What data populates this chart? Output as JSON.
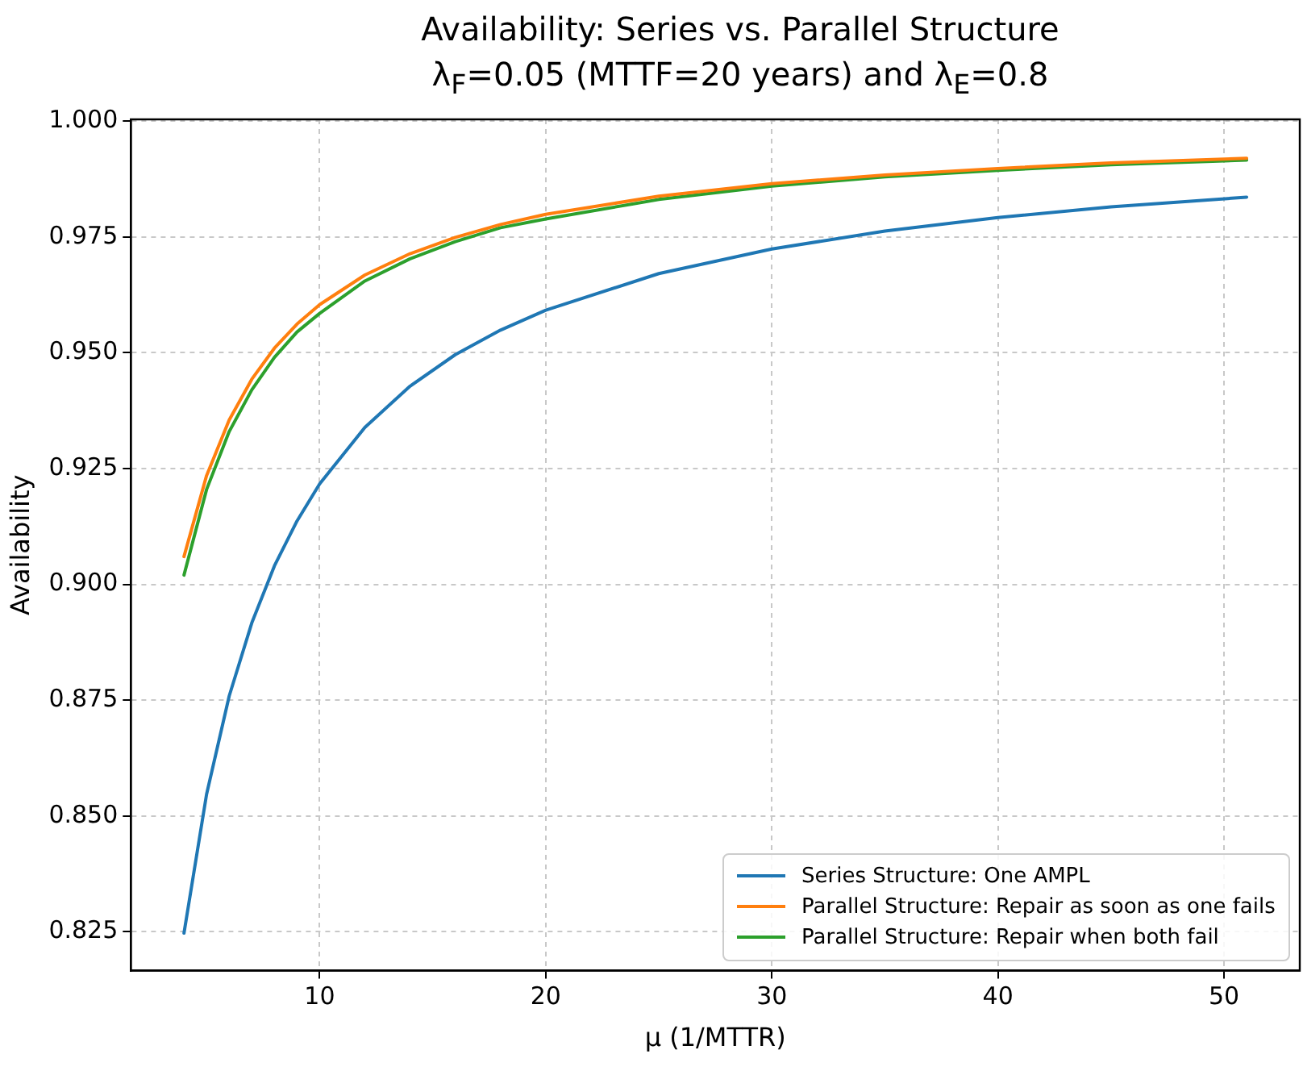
{
  "chart_data": {
    "type": "line",
    "title": "Availability: Series vs. Parallel Structure\nλ$_{F}$=0.05 (MTTF=20 years) and λ$_{E}$=0.8",
    "xlabel": "μ (1/MTTR)",
    "ylabel": "Availability",
    "x": [
      4,
      5,
      6,
      7,
      8,
      9,
      10,
      12,
      14,
      16,
      18,
      20,
      25,
      30,
      35,
      40,
      45,
      51
    ],
    "series": [
      {
        "name": "Series Structure: One AMPL",
        "color": "#1f77b4",
        "values": [
          0.8247,
          0.8547,
          0.8759,
          0.8917,
          0.904,
          0.9137,
          0.9217,
          0.9339,
          0.9428,
          0.9496,
          0.9549,
          0.9592,
          0.9671,
          0.9724,
          0.9763,
          0.9792,
          0.9815,
          0.9836
        ]
      },
      {
        "name": "Parallel Structure: Repair as soon as one fails",
        "color": "#ff7f0e",
        "values": [
          0.906,
          0.9235,
          0.9355,
          0.9443,
          0.951,
          0.9562,
          0.9604,
          0.9668,
          0.9714,
          0.9749,
          0.9777,
          0.9799,
          0.9838,
          0.9865,
          0.9884,
          0.9898,
          0.991,
          0.992
        ]
      },
      {
        "name": "Parallel Structure: Repair when both fail",
        "color": "#2ca02c",
        "values": [
          0.902,
          0.9205,
          0.933,
          0.942,
          0.949,
          0.9545,
          0.9585,
          0.9655,
          0.9703,
          0.974,
          0.977,
          0.9789,
          0.9831,
          0.986,
          0.988,
          0.9894,
          0.9906,
          0.9916
        ]
      }
    ],
    "xlim": [
      1.65,
      53.35
    ],
    "xticks": [
      10,
      20,
      30,
      40,
      50
    ],
    "ylim": [
      0.8166,
      1.0004
    ],
    "yticks": [
      {
        "value": 0.825,
        "label": "0.825"
      },
      {
        "value": 0.85,
        "label": "0.850"
      },
      {
        "value": 0.875,
        "label": "0.875"
      },
      {
        "value": 0.9,
        "label": "0.900"
      },
      {
        "value": 0.925,
        "label": "0.925"
      },
      {
        "value": 0.95,
        "label": "0.950"
      },
      {
        "value": 0.975,
        "label": "0.975"
      },
      {
        "value": 1,
        "label": "1.000"
      }
    ],
    "grid": true,
    "legend": "bottom right",
    "marker": "none",
    "line_style": "solid"
  }
}
